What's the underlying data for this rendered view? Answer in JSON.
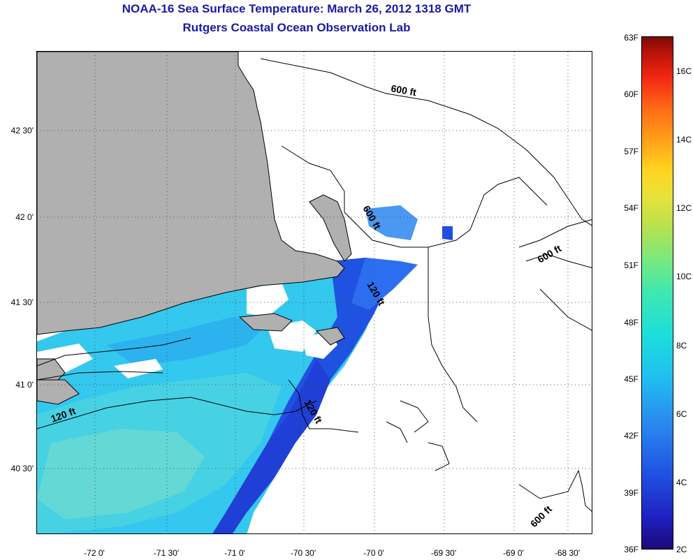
{
  "header": {
    "title": "NOAA-16 Sea Surface Temperature:  March 26, 2012 1318 GMT",
    "subtitle": "Rutgers Coastal Ocean Observation Lab"
  },
  "map": {
    "latitude_labels": [
      "42 30'",
      "42 0'",
      "41 30'",
      "41 0'",
      "40 30'"
    ],
    "longitude_labels": [
      "-72 0'",
      "-71 30'",
      "-71 0'",
      "-70 30'",
      "-70 0'",
      "-69 30'",
      "-69 0'",
      "-68 30'"
    ],
    "contour_labels": [
      {
        "text": "600 ft"
      },
      {
        "text": "600 ft"
      },
      {
        "text": "600 ft"
      },
      {
        "text": "600 ft"
      },
      {
        "text": "120 ft"
      },
      {
        "text": "120 ft"
      },
      {
        "text": "120 ft"
      }
    ],
    "colors": {
      "land": "#b0b0b0",
      "cloud": "#ffffff",
      "grid": "#555555"
    }
  },
  "colorbar": {
    "fahrenheit_labels": [
      "63F",
      "60F",
      "57F",
      "54F",
      "51F",
      "48F",
      "45F",
      "42F",
      "39F",
      "36F"
    ],
    "celsius_labels": [
      "16C",
      "14C",
      "12C",
      "10C",
      "8C",
      "6C",
      "4C",
      "2C"
    ],
    "colors": {
      "cold": "#1c0a78",
      "mid": "#3ee8b0",
      "warm": "#7a0a06"
    }
  }
}
